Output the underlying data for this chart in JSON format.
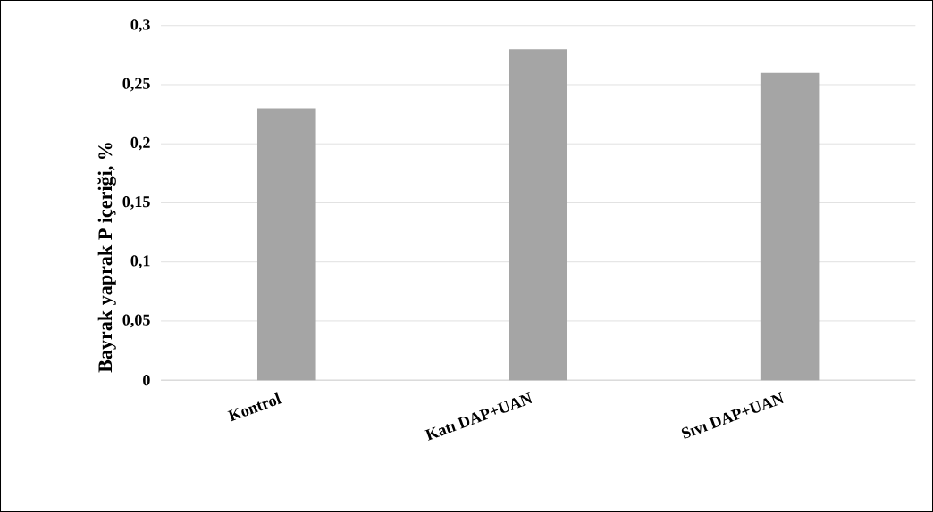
{
  "chart_data": {
    "type": "bar",
    "ylabel": "Bayrak yaprak P içeriği, %",
    "categories": [
      "Kontrol",
      "Katı DAP+UAN",
      "Sıvı DAP+UAN"
    ],
    "values": [
      0.23,
      0.28,
      0.26
    ],
    "color": "#a5a5a5",
    "ylim": [
      0,
      0.3
    ],
    "yticks": [
      {
        "value": 0,
        "label": "0"
      },
      {
        "value": 0.05,
        "label": "0,05"
      },
      {
        "value": 0.1,
        "label": "0,1"
      },
      {
        "value": 0.15,
        "label": "0,15"
      },
      {
        "value": 0.2,
        "label": "0,2"
      },
      {
        "value": 0.25,
        "label": "0,25"
      },
      {
        "value": 0.3,
        "label": "0,3"
      }
    ],
    "grid": "y"
  }
}
